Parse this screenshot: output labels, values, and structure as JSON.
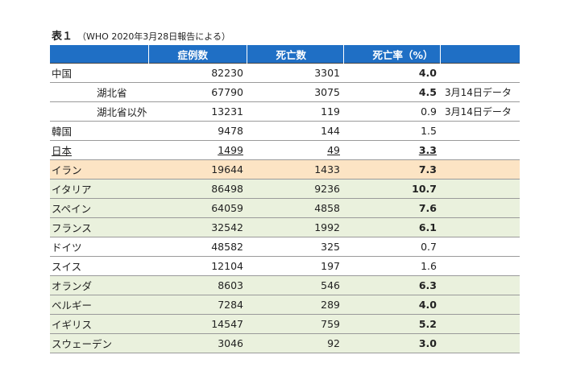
{
  "title": {
    "main": "表１",
    "sub": "（WHO 2020年3月28日報告による）"
  },
  "table": {
    "headers": [
      "",
      "症例数",
      "死亡数",
      "死亡率（%）",
      ""
    ],
    "rows": [
      {
        "country": "中国",
        "cases": "82230",
        "deaths": "3301",
        "rate": "4.0",
        "note": ""
      },
      {
        "country": "湖北省",
        "cases": "67790",
        "deaths": "3075",
        "rate": "4.5",
        "note": "3月14日データ"
      },
      {
        "country": "湖北省以外",
        "cases": "13231",
        "deaths": "119",
        "rate": "0.9",
        "note": "3月14日データ"
      },
      {
        "country": "韓国",
        "cases": "9478",
        "deaths": "144",
        "rate": "1.5",
        "note": ""
      },
      {
        "country": "日本",
        "cases": "1499",
        "deaths": "49",
        "rate": "3.3",
        "note": ""
      },
      {
        "country": "イラン",
        "cases": "19644",
        "deaths": "1433",
        "rate": "7.3",
        "note": ""
      },
      {
        "country": "イタリア",
        "cases": "86498",
        "deaths": "9236",
        "rate": "10.7",
        "note": ""
      },
      {
        "country": "スペイン",
        "cases": "64059",
        "deaths": "4858",
        "rate": "7.6",
        "note": ""
      },
      {
        "country": "フランス",
        "cases": "32542",
        "deaths": "1992",
        "rate": "6.1",
        "note": ""
      },
      {
        "country": "ドイツ",
        "cases": "48582",
        "deaths": "325",
        "rate": "0.7",
        "note": ""
      },
      {
        "country": "スイス",
        "cases": "12104",
        "deaths": "197",
        "rate": "1.6",
        "note": ""
      },
      {
        "country": "オランダ",
        "cases": "8603",
        "deaths": "546",
        "rate": "6.3",
        "note": ""
      },
      {
        "country": "ベルギー",
        "cases": "7284",
        "deaths": "289",
        "rate": "4.0",
        "note": ""
      },
      {
        "country": "イギリス",
        "cases": "14547",
        "deaths": "759",
        "rate": "5.2",
        "note": ""
      },
      {
        "country": "スウェーデン",
        "cases": "3046",
        "deaths": "92",
        "rate": "3.0",
        "note": ""
      }
    ]
  },
  "colors": {
    "header_bg": "#1f6fc5",
    "green_row": "#eaf1dd",
    "orange_row": "#fce4c4"
  }
}
